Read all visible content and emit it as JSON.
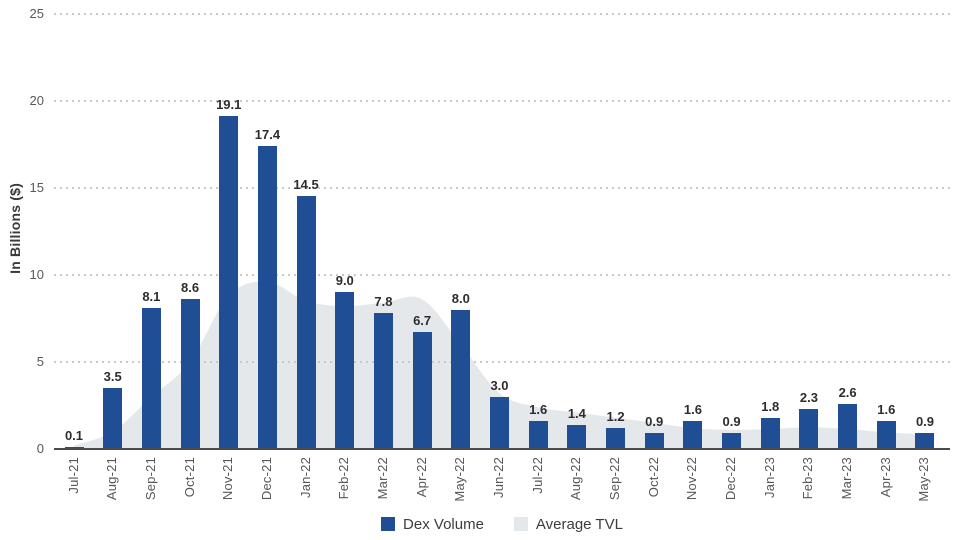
{
  "chart_data": {
    "type": "bar",
    "title": "",
    "ylabel": "In Billions ($)",
    "ylim": [
      0,
      25
    ],
    "yticks": [
      0,
      5,
      10,
      15,
      20,
      25
    ],
    "grid": "horizontal-dotted",
    "legend_position": "bottom-center",
    "categories": [
      "Jul-21",
      "Aug-21",
      "Sep-21",
      "Oct-21",
      "Nov-21",
      "Dec-21",
      "Jan-22",
      "Feb-22",
      "Mar-22",
      "Apr-22",
      "May-22",
      "Jun-22",
      "Jul-22",
      "Aug-22",
      "Sep-22",
      "Oct-22",
      "Nov-22",
      "Dec-22",
      "Jan-23",
      "Feb-23",
      "Mar-23",
      "Apr-23",
      "May-23"
    ],
    "series": [
      {
        "name": "Dex Volume",
        "type": "bar",
        "color": "#1F4E94",
        "values": [
          0.1,
          3.5,
          8.1,
          8.6,
          19.1,
          17.4,
          14.5,
          9.0,
          7.8,
          6.7,
          8.0,
          3.0,
          1.6,
          1.4,
          1.2,
          0.9,
          1.6,
          0.9,
          1.8,
          2.3,
          2.6,
          1.6,
          0.9
        ],
        "labels": [
          "0.1",
          "3.5",
          "8.1",
          "8.6",
          "19.1",
          "17.4",
          "14.5",
          "9.0",
          "7.8",
          "6.7",
          "8.0",
          "3.0",
          "1.6",
          "1.4",
          "1.2",
          "0.9",
          "1.6",
          "0.9",
          "1.8",
          "2.3",
          "2.6",
          "1.6",
          "0.9"
        ]
      },
      {
        "name": "Average TVL",
        "type": "area",
        "color": "#E5E8EB",
        "values": [
          0.2,
          1.0,
          3.0,
          5.0,
          8.8,
          9.6,
          8.5,
          8.2,
          8.4,
          8.6,
          6.0,
          3.2,
          2.4,
          2.1,
          1.8,
          1.5,
          1.2,
          1.1,
          1.15,
          1.25,
          1.15,
          0.95,
          0.85
        ]
      }
    ]
  },
  "colors": {
    "bar_blue": "#1F4E94",
    "area_gray": "#E5E8EB",
    "axis_line": "#4A4A4A",
    "grid_dot": "#C9C9C9",
    "tick_text": "#595959",
    "bar_label_text": "#2D2D2D",
    "legend_text": "#3D3D3D"
  }
}
